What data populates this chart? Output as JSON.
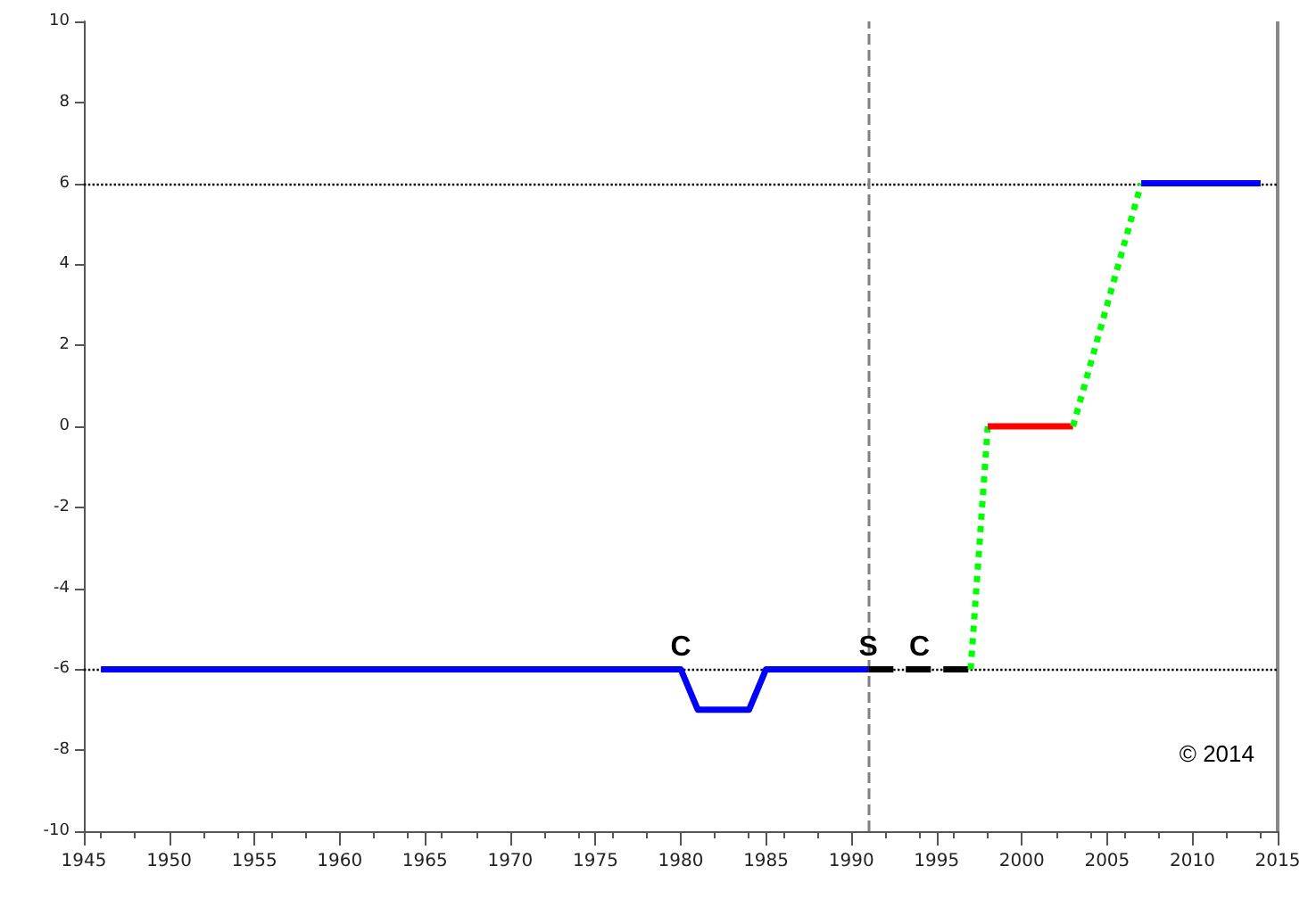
{
  "chart_data": {
    "type": "line",
    "xlim": [
      1945,
      2015
    ],
    "xticks": [
      1945,
      1950,
      1955,
      1960,
      1965,
      1970,
      1975,
      1980,
      1985,
      1990,
      1995,
      2000,
      2005,
      2010,
      2015
    ],
    "ylim": [
      -10,
      10
    ],
    "yticks": [
      -10,
      -8,
      -6,
      -4,
      -2,
      0,
      2,
      4,
      6,
      8,
      10
    ],
    "grid": false,
    "marker": "none",
    "series": [
      {
        "color": "#0000ff",
        "line_style": "solid",
        "x": [
          1946,
          1980,
          1981,
          1984,
          1985,
          1991
        ],
        "values": [
          -6,
          -6,
          -7,
          -7,
          -6,
          -6
        ]
      },
      {
        "color": "#000000",
        "line_style": "dashed",
        "x": [
          1991,
          1997
        ],
        "values": [
          -6,
          -6
        ]
      },
      {
        "color": "#00ff00",
        "line_style": "dotted",
        "x": [
          1997,
          1998
        ],
        "values": [
          -6,
          0
        ]
      },
      {
        "color": "#ff0000",
        "line_style": "solid",
        "x": [
          1998,
          2003
        ],
        "values": [
          0,
          0
        ]
      },
      {
        "color": "#00ff00",
        "line_style": "dotted",
        "x": [
          2003,
          2007
        ],
        "values": [
          0,
          6
        ]
      },
      {
        "color": "#0000ff",
        "line_style": "solid",
        "x": [
          2007,
          2014
        ],
        "values": [
          6,
          6
        ]
      }
    ],
    "ref_lines": [
      {
        "axis": "y",
        "value": 6,
        "color": "#000000",
        "line_style": "dotted"
      },
      {
        "axis": "y",
        "value": -6,
        "color": "#000000",
        "line_style": "dotted"
      },
      {
        "axis": "x",
        "value": 1991,
        "color": "#808080",
        "line_style": "dashed"
      }
    ],
    "annotations": [
      {
        "text": "C",
        "x": 1980,
        "y": -6
      },
      {
        "text": "S",
        "x": 1991,
        "y": -6
      },
      {
        "text": "C",
        "x": 1994,
        "y": -6
      },
      "© 2014"
    ]
  }
}
